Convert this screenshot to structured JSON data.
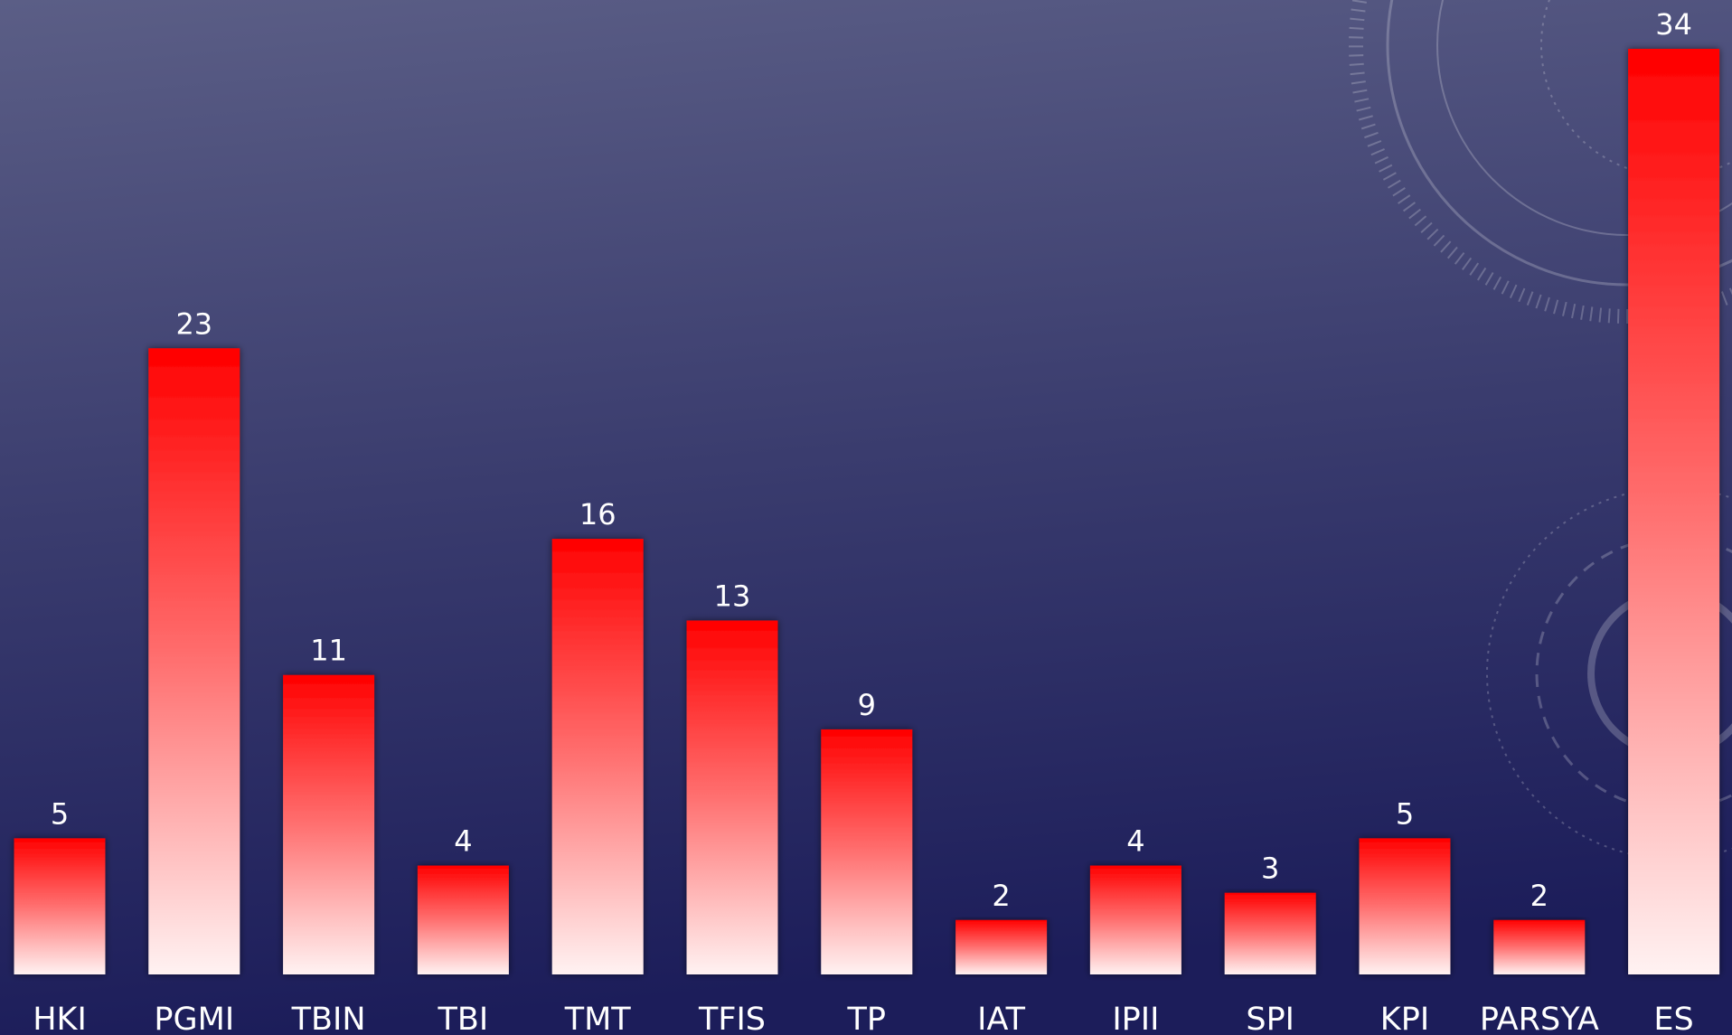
{
  "chart_data": {
    "type": "bar",
    "categories": [
      "HKI",
      "PGMI",
      "TBIN",
      "TBI",
      "TMT",
      "TFIS",
      "TP",
      "IAT",
      "IPII",
      "SPI",
      "KPI",
      "PARSYA",
      "ES"
    ],
    "values": [
      5,
      23,
      11,
      4,
      16,
      13,
      9,
      2,
      4,
      3,
      5,
      2,
      34
    ],
    "color": "#ff0000"
  }
}
